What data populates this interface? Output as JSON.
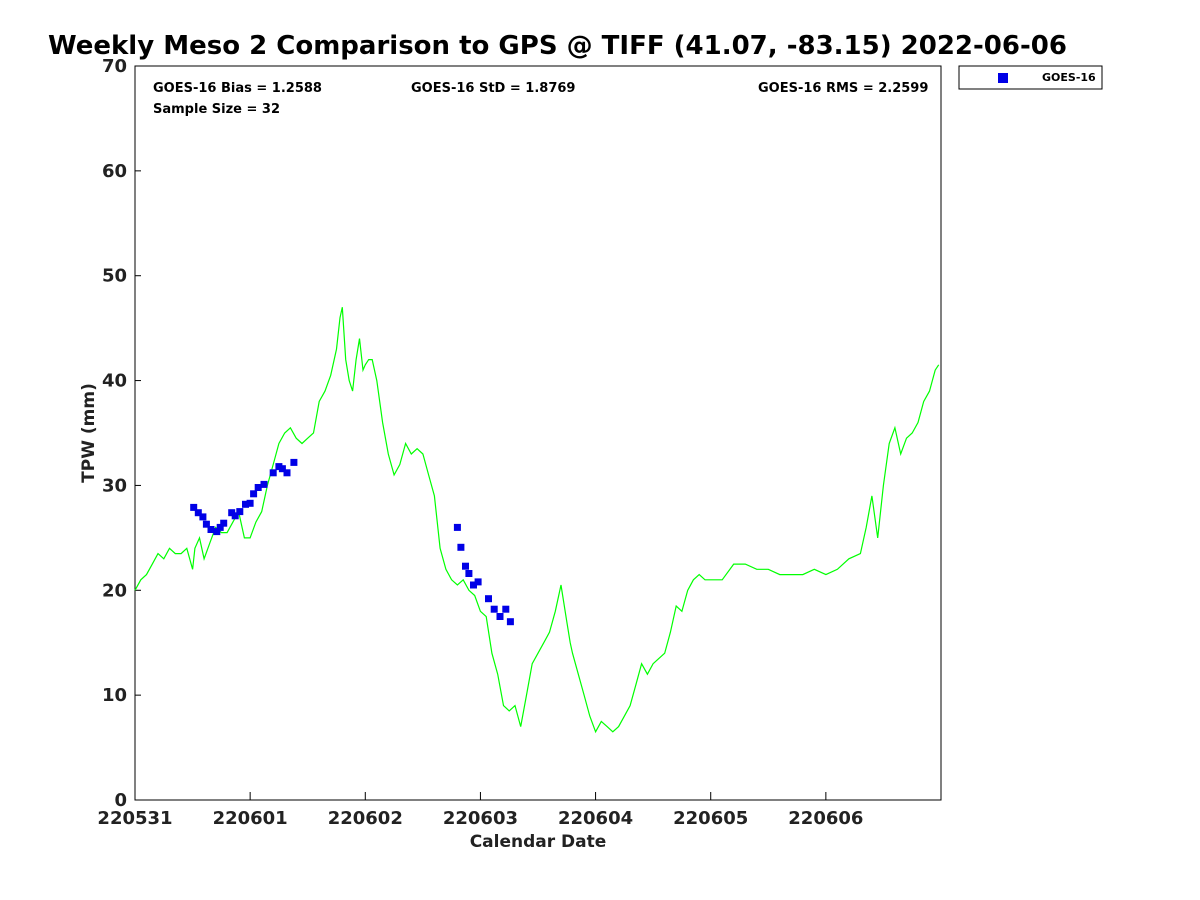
{
  "chart_data": {
    "type": "line",
    "title": "Weekly Meso 2 Comparison to GPS @ TIFF (41.07, -83.15) 2022-06-06",
    "xlabel": "Calendar Date",
    "ylabel": "TPW (mm)",
    "xlim": [
      0,
      7
    ],
    "ylim": [
      0,
      70
    ],
    "x_tick_labels": [
      "220531",
      "220601",
      "220602",
      "220603",
      "220604",
      "220605",
      "220606"
    ],
    "x_tick_values": [
      0,
      1,
      2,
      3,
      4,
      5,
      6
    ],
    "y_tick_values": [
      0,
      10,
      20,
      30,
      40,
      50,
      60,
      70
    ],
    "stats": {
      "bias": "GOES-16 Bias = 1.2588",
      "std": "GOES-16 StD = 1.8769",
      "rms": "GOES-16 RMS = 2.2599",
      "sample": "Sample Size = 32"
    },
    "legend": {
      "position": "top-right",
      "entries": [
        "GOES-16"
      ]
    },
    "colors": {
      "gps_line": "#00ff00",
      "goes_markers": "#0000e6"
    },
    "series": [
      {
        "style": "line",
        "x": [
          0.0,
          0.05,
          0.1,
          0.15,
          0.2,
          0.25,
          0.3,
          0.35,
          0.4,
          0.45,
          0.5,
          0.52,
          0.56,
          0.6,
          0.65,
          0.7,
          0.75,
          0.8,
          0.85,
          0.9,
          0.95,
          1.0,
          1.05,
          1.1,
          1.15,
          1.2,
          1.25,
          1.3,
          1.35,
          1.4,
          1.45,
          1.5,
          1.55,
          1.6,
          1.65,
          1.7,
          1.75,
          1.78,
          1.8,
          1.83,
          1.86,
          1.89,
          1.92,
          1.95,
          1.98,
          2.0,
          2.03,
          2.06,
          2.1,
          2.15,
          2.2,
          2.25,
          2.3,
          2.35,
          2.4,
          2.45,
          2.5,
          2.55,
          2.6,
          2.65,
          2.7,
          2.75,
          2.8,
          2.85,
          2.9,
          2.95,
          3.0,
          3.05,
          3.1,
          3.15,
          3.2,
          3.25,
          3.3,
          3.35,
          3.4,
          3.45,
          3.5,
          3.55,
          3.6,
          3.65,
          3.7,
          3.75,
          3.78,
          3.8,
          3.85,
          3.9,
          3.95,
          4.0,
          4.05,
          4.1,
          4.15,
          4.2,
          4.25,
          4.3,
          4.35,
          4.4,
          4.45,
          4.5,
          4.55,
          4.6,
          4.65,
          4.7,
          4.75,
          4.8,
          4.85,
          4.9,
          4.95,
          5.0,
          5.1,
          5.2,
          5.3,
          5.4,
          5.5,
          5.6,
          5.7,
          5.8,
          5.9,
          6.0,
          6.1,
          6.2,
          6.3,
          6.35,
          6.4,
          6.45,
          6.5,
          6.55,
          6.6,
          6.65,
          6.7,
          6.75,
          6.8,
          6.85,
          6.9,
          6.95,
          6.98
        ],
        "y": [
          20.0,
          21.0,
          21.5,
          22.5,
          23.5,
          23.0,
          24.0,
          23.5,
          23.5,
          24.0,
          22.0,
          24.0,
          25.0,
          23.0,
          24.5,
          26.0,
          25.5,
          25.5,
          26.5,
          27.5,
          25.0,
          25.0,
          26.5,
          27.5,
          30.0,
          32.0,
          34.0,
          35.0,
          35.5,
          34.5,
          34.0,
          34.5,
          35.0,
          38.0,
          39.0,
          40.5,
          43.0,
          46.0,
          47.0,
          42.0,
          40.0,
          39.0,
          42.0,
          44.0,
          41.0,
          41.5,
          42.0,
          42.0,
          40.0,
          36.0,
          33.0,
          31.0,
          32.0,
          34.0,
          33.0,
          33.5,
          33.0,
          31.0,
          29.0,
          24.0,
          22.0,
          21.0,
          20.5,
          21.0,
          20.0,
          19.5,
          18.0,
          17.5,
          14.0,
          12.0,
          9.0,
          8.5,
          9.0,
          7.0,
          10.0,
          13.0,
          14.0,
          15.0,
          16.0,
          18.0,
          20.5,
          17.0,
          15.0,
          14.0,
          12.0,
          10.0,
          8.0,
          6.5,
          7.5,
          7.0,
          6.5,
          7.0,
          8.0,
          9.0,
          11.0,
          13.0,
          12.0,
          13.0,
          13.5,
          14.0,
          16.0,
          18.5,
          18.0,
          20.0,
          21.0,
          21.5,
          21.0,
          21.0,
          21.0,
          22.5,
          22.5,
          22.0,
          22.0,
          21.5,
          21.5,
          21.5,
          22.0,
          21.5,
          22.0,
          23.0,
          23.5,
          26.0,
          29.0,
          25.0,
          30.0,
          34.0,
          35.5,
          33.0,
          34.5,
          35.0,
          36.0,
          38.0,
          39.0,
          41.0,
          41.5
        ]
      },
      {
        "name": "GOES-16",
        "style": "markers",
        "x": [
          0.51,
          0.55,
          0.59,
          0.62,
          0.66,
          0.71,
          0.74,
          0.77,
          0.84,
          0.87,
          0.91,
          0.96,
          1.0,
          1.03,
          1.07,
          1.12,
          1.2,
          1.25,
          1.28,
          1.32,
          1.38,
          2.8,
          2.83,
          2.87,
          2.9,
          2.94,
          2.98,
          3.07,
          3.12,
          3.17,
          3.22,
          3.26
        ],
        "y": [
          27.9,
          27.4,
          27.0,
          26.3,
          25.8,
          25.6,
          26.0,
          26.4,
          27.4,
          27.1,
          27.5,
          28.2,
          28.3,
          29.2,
          29.8,
          30.1,
          31.2,
          31.8,
          31.6,
          31.2,
          32.2,
          26.0,
          24.1,
          22.3,
          21.6,
          20.5,
          20.8,
          19.2,
          18.2,
          17.5,
          18.2,
          17.0
        ]
      }
    ]
  }
}
